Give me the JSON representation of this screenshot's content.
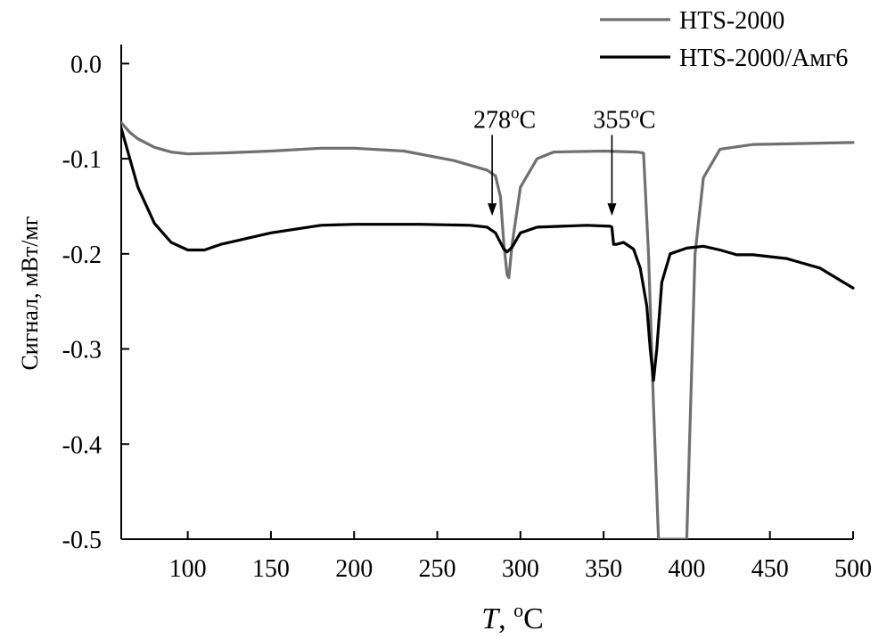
{
  "chart_data": {
    "type": "line",
    "title": "",
    "xlabel": "T",
    "xlabel_suffix": ", ",
    "xunit_superscript": "o",
    "xunit": "C",
    "ylabel": "Сигнал, мВт/мг",
    "xlim": [
      60,
      500
    ],
    "ylim": [
      -0.5,
      0.02
    ],
    "x_ticks": [
      "100",
      "150",
      "200",
      "250",
      "300",
      "350",
      "400",
      "450",
      "500"
    ],
    "y_ticks": [
      "0.0",
      "-0.1",
      "-0.2",
      "-0.3",
      "-0.4",
      "-0.5"
    ],
    "grid": false,
    "legend_position": "top-right",
    "series": [
      {
        "name": "HTS-2000",
        "color": "#707070",
        "points": [
          [
            60,
            -0.062
          ],
          [
            65,
            -0.072
          ],
          [
            70,
            -0.079
          ],
          [
            80,
            -0.088
          ],
          [
            90,
            -0.093
          ],
          [
            100,
            -0.095
          ],
          [
            120,
            -0.094
          ],
          [
            150,
            -0.092
          ],
          [
            180,
            -0.089
          ],
          [
            200,
            -0.089
          ],
          [
            230,
            -0.092
          ],
          [
            260,
            -0.102
          ],
          [
            280,
            -0.112
          ],
          [
            285,
            -0.118
          ],
          [
            288,
            -0.14
          ],
          [
            290,
            -0.19
          ],
          [
            292,
            -0.222
          ],
          [
            293,
            -0.225
          ],
          [
            295,
            -0.19
          ],
          [
            300,
            -0.13
          ],
          [
            310,
            -0.1
          ],
          [
            320,
            -0.093
          ],
          [
            350,
            -0.092
          ],
          [
            370,
            -0.093
          ],
          [
            374,
            -0.094
          ],
          [
            377,
            -0.2
          ],
          [
            380,
            -0.36
          ],
          [
            383,
            -0.5
          ],
          [
            400,
            -0.5
          ],
          [
            402,
            -0.38
          ],
          [
            405,
            -0.2
          ],
          [
            410,
            -0.12
          ],
          [
            420,
            -0.09
          ],
          [
            440,
            -0.085
          ],
          [
            470,
            -0.084
          ],
          [
            500,
            -0.083
          ]
        ]
      },
      {
        "name": "HTS-2000/Амг6",
        "color": "#000000",
        "points": [
          [
            60,
            -0.068
          ],
          [
            70,
            -0.13
          ],
          [
            80,
            -0.168
          ],
          [
            90,
            -0.188
          ],
          [
            100,
            -0.196
          ],
          [
            110,
            -0.196
          ],
          [
            120,
            -0.19
          ],
          [
            150,
            -0.178
          ],
          [
            180,
            -0.17
          ],
          [
            200,
            -0.169
          ],
          [
            240,
            -0.169
          ],
          [
            270,
            -0.17
          ],
          [
            280,
            -0.172
          ],
          [
            285,
            -0.178
          ],
          [
            290,
            -0.195
          ],
          [
            292,
            -0.198
          ],
          [
            295,
            -0.193
          ],
          [
            300,
            -0.178
          ],
          [
            310,
            -0.172
          ],
          [
            340,
            -0.17
          ],
          [
            354,
            -0.171
          ],
          [
            355,
            -0.172
          ],
          [
            356,
            -0.19
          ],
          [
            358,
            -0.19
          ],
          [
            362,
            -0.188
          ],
          [
            368,
            -0.195
          ],
          [
            372,
            -0.215
          ],
          [
            376,
            -0.255
          ],
          [
            378,
            -0.3
          ],
          [
            380,
            -0.333
          ],
          [
            382,
            -0.3
          ],
          [
            385,
            -0.23
          ],
          [
            390,
            -0.2
          ],
          [
            400,
            -0.194
          ],
          [
            410,
            -0.192
          ],
          [
            420,
            -0.196
          ],
          [
            430,
            -0.201
          ],
          [
            440,
            -0.201
          ],
          [
            460,
            -0.205
          ],
          [
            480,
            -0.215
          ],
          [
            500,
            -0.236
          ]
        ]
      }
    ],
    "annotations": [
      {
        "label": "278",
        "sup": "o",
        "unit": "C",
        "x": 283,
        "arrow_from_y": -0.075,
        "arrow_to_y": -0.16
      },
      {
        "label": "355",
        "sup": "o",
        "unit": "C",
        "x": 355,
        "arrow_from_y": -0.075,
        "arrow_to_y": -0.16
      }
    ]
  }
}
